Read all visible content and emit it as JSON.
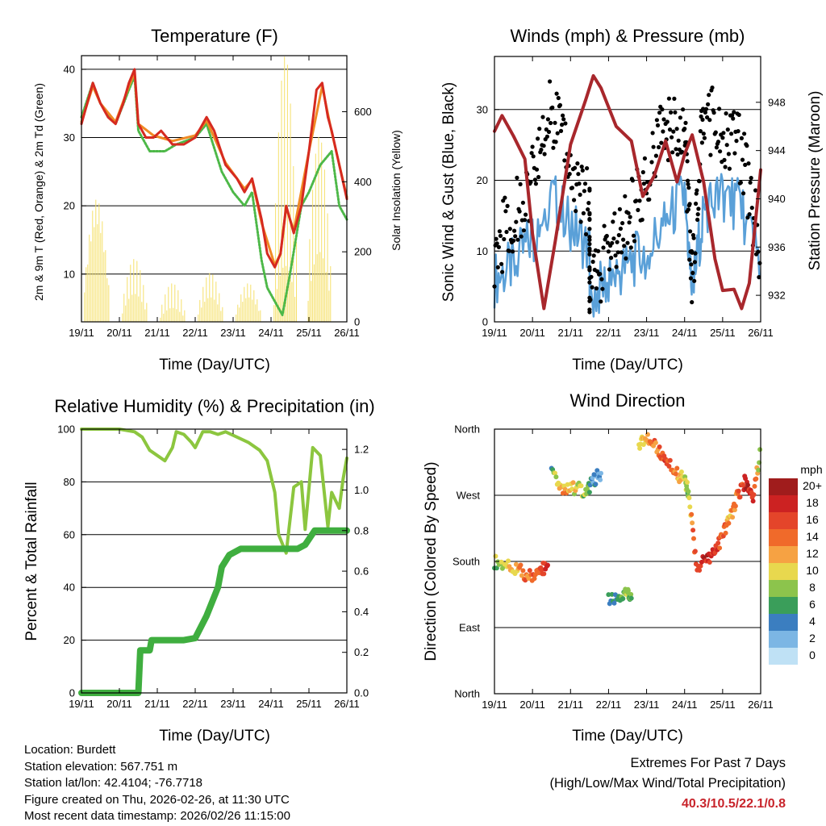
{
  "colors": {
    "red": "#d62a20",
    "orange": "#f08a24",
    "green": "#4db848",
    "yellow": "#f5e06a",
    "black": "#000000",
    "blue": "#5aa0d8",
    "maroon": "#a8272c",
    "rh": "#8cc63f",
    "precip": "#3fae3f"
  },
  "xaxis": {
    "ticks": [
      "19/11",
      "20/11",
      "21/11",
      "22/11",
      "23/11",
      "24/11",
      "25/11",
      "26/11"
    ],
    "label": "Time (Day/UTC)"
  },
  "temperature": {
    "title": "Temperature (F)",
    "ylabel_left": "2m & 9m T (Red, Orange) & 2m Td (Green)",
    "ylabel_right": "Solar Insolation (Yellow)",
    "left_ticks": [
      "10",
      "20",
      "30",
      "40"
    ],
    "right_ticks": [
      "0",
      "200",
      "400",
      "600"
    ]
  },
  "winds": {
    "title": "Winds (mph) & Pressure (mb)",
    "ylabel_left": "Sonic Wind & Gust (Blue, Black)",
    "ylabel_right": "Station Pressure (Maroon)",
    "left_ticks": [
      "0",
      "10",
      "20",
      "30"
    ],
    "right_ticks": [
      "932",
      "936",
      "940",
      "944",
      "948"
    ]
  },
  "humidity": {
    "title": "Relative Humidity (%) & Precipitation (in)",
    "ylabel_left": "Percent & Total Rainfall",
    "left_ticks": [
      "0",
      "20",
      "40",
      "60",
      "80",
      "100"
    ],
    "right_ticks": [
      "0.0",
      "0.2",
      "0.4",
      "0.6",
      "0.8",
      "1.0",
      "1.2"
    ]
  },
  "direction": {
    "title": "Wind Direction",
    "ylabel": "Direction (Colored By Speed)",
    "dir_ticks": [
      "North",
      "East",
      "South",
      "West",
      "North"
    ],
    "legend_title": "mph",
    "legend_labels": [
      "20+",
      "18",
      "16",
      "14",
      "12",
      "10",
      "8",
      "6",
      "4",
      "2",
      "0"
    ],
    "legend_colors": [
      "#a01c1c",
      "#cc2222",
      "#e4452a",
      "#f06a2a",
      "#f6a243",
      "#e8d84e",
      "#8cc44c",
      "#3a9e5a",
      "#3b7ec0",
      "#7cb6e4",
      "#bfe1f5"
    ]
  },
  "footer": {
    "location": "Location: Burdett",
    "elevation": "Station elevation: 567.751 m",
    "latlon": "Station lat/lon: 42.4104; -76.7718",
    "created": "Figure created on Thu, 2026-02-26, at 11:30 UTC",
    "recent": "Most recent data timestamp: 2026/02/26 11:15:00",
    "extremes_title": "Extremes For Past 7 Days",
    "extremes_subtitle": "(High/Low/Max Wind/Total Precipitation)",
    "extremes_values": "40.3/10.5/22.1/0.8"
  },
  "chart_data": [
    {
      "type": "line",
      "name": "temperature",
      "title": "Temperature (F)",
      "xlabel": "Time (Day/UTC)",
      "ylabel": "2m & 9m T (Red, Orange) & 2m Td (Green)",
      "y2label": "Solar Insolation (Yellow)",
      "xlim": [
        0,
        7
      ],
      "ylim": [
        3,
        42
      ],
      "y2lim": [
        0,
        760
      ],
      "x_ticks": [
        "19/11",
        "20/11",
        "21/11",
        "22/11",
        "23/11",
        "24/11",
        "25/11",
        "26/11"
      ],
      "series": [
        {
          "name": "2m T",
          "color": "#d62a20",
          "x": [
            0,
            0.1,
            0.3,
            0.5,
            0.7,
            0.9,
            1.1,
            1.25,
            1.4,
            1.5,
            1.7,
            1.9,
            2.1,
            2.4,
            2.7,
            3.0,
            3.3,
            3.5,
            3.8,
            4.1,
            4.3,
            4.5,
            4.75,
            4.9,
            5.1,
            5.25,
            5.4,
            5.6,
            5.8,
            6.0,
            6.2,
            6.35,
            6.5,
            6.6,
            6.8,
            7.0
          ],
          "y": [
            32,
            34,
            38,
            35,
            33,
            32,
            35,
            38,
            40,
            32,
            30,
            30,
            31,
            29,
            29,
            30,
            33,
            31,
            26,
            24,
            22,
            24,
            18,
            13,
            11,
            13,
            20,
            16,
            20,
            28,
            37,
            38,
            33,
            31,
            26,
            21
          ]
        },
        {
          "name": "9m T",
          "color": "#f08a24",
          "x": [
            0,
            0.3,
            0.5,
            0.9,
            1.25,
            1.4,
            1.5,
            1.9,
            2.4,
            3.0,
            3.3,
            3.8,
            4.3,
            4.5,
            4.75,
            5.1,
            5.25,
            5.4,
            5.6,
            6.0,
            6.35,
            6.6,
            7.0
          ],
          "y": [
            32.3,
            37.5,
            35,
            32.3,
            37.5,
            39.5,
            32,
            30.3,
            29.5,
            30.3,
            32.5,
            26.3,
            22.5,
            23.8,
            17.5,
            11.3,
            13,
            19.8,
            16.3,
            28,
            37.5,
            30.8,
            21.3
          ]
        },
        {
          "name": "2m Td",
          "color": "#4db848",
          "x": [
            0,
            0.3,
            0.5,
            0.9,
            1.25,
            1.4,
            1.5,
            1.8,
            2.2,
            2.5,
            3.0,
            3.3,
            3.7,
            4.0,
            4.3,
            4.5,
            4.75,
            4.9,
            5.2,
            5.3,
            5.5,
            5.8,
            6.0,
            6.3,
            6.6,
            6.8,
            7.0
          ],
          "y": [
            33,
            38,
            35,
            32,
            37,
            39,
            31,
            28,
            28,
            29,
            30,
            32,
            25,
            22,
            20,
            22,
            12,
            8,
            5,
            4,
            10,
            20,
            22,
            26,
            28,
            20,
            18
          ]
        },
        {
          "name": "Solar Insolation",
          "color": "#f5e06a",
          "axis": "right",
          "x": [
            0.3,
            0.5,
            1.3,
            1.5,
            2.3,
            2.5,
            3.3,
            3.5,
            4.3,
            4.5,
            5.3,
            5.45,
            6.2,
            6.35
          ],
          "y": [
            280,
            350,
            80,
            180,
            40,
            110,
            70,
            140,
            70,
            110,
            160,
            760,
            200,
            530
          ]
        }
      ]
    },
    {
      "type": "line",
      "name": "winds_pressure",
      "title": "Winds (mph) & Pressure (mb)",
      "xlabel": "Time (Day/UTC)",
      "ylabel": "Sonic Wind & Gust (Blue, Black)",
      "y2label": "Station Pressure (Maroon)",
      "xlim": [
        0,
        7
      ],
      "ylim": [
        0,
        37.5
      ],
      "y2lim": [
        929.8,
        951.8
      ],
      "x_ticks": [
        "19/11",
        "20/11",
        "21/11",
        "22/11",
        "23/11",
        "24/11",
        "25/11",
        "26/11"
      ],
      "series": [
        {
          "name": "Wind",
          "color": "#5aa0d8",
          "x": [
            0,
            0.5,
            1.0,
            1.5,
            2.0,
            2.5,
            2.5,
            3.0,
            3.5,
            4.0,
            4.5,
            5.0,
            5.2,
            5.5,
            6.0,
            6.5,
            7.0
          ],
          "y": [
            6,
            8,
            12,
            18,
            14,
            10,
            3,
            6,
            8,
            10,
            14,
            18,
            4,
            16,
            18,
            16,
            8
          ]
        },
        {
          "name": "Gust",
          "color": "#000000",
          "x": [
            0,
            0.5,
            1.0,
            1.5,
            2.0,
            2.5,
            2.5,
            3.0,
            3.5,
            4.0,
            4.5,
            5.0,
            5.2,
            5.5,
            6.0,
            6.5,
            7.0
          ],
          "y": [
            10,
            15,
            20,
            30,
            22,
            16,
            4,
            10,
            14,
            20,
            28,
            26,
            5,
            30,
            26,
            24,
            10
          ]
        },
        {
          "name": "Station Pressure",
          "color": "#a8272c",
          "axis": "right",
          "x": [
            0,
            0.2,
            0.5,
            0.8,
            1.0,
            1.3,
            1.6,
            2.0,
            2.4,
            2.6,
            2.8,
            3.2,
            3.6,
            3.9,
            4.2,
            4.5,
            4.8,
            5.0,
            5.2,
            5.5,
            5.8,
            6.0,
            6.3,
            6.5,
            6.7,
            7.0
          ],
          "y": [
            945.6,
            946.9,
            945.2,
            943.3,
            937.1,
            930.9,
            936.5,
            944.5,
            948.2,
            950.2,
            949.2,
            946.0,
            944.8,
            940.2,
            941.9,
            944.8,
            941.4,
            943.7,
            945.3,
            941.4,
            935.0,
            932.4,
            932.5,
            930.9,
            933.0,
            942.4
          ]
        }
      ]
    },
    {
      "type": "line",
      "name": "humidity_precip",
      "title": "Relative Humidity (%) & Precipitation (in)",
      "xlabel": "Time (Day/UTC)",
      "ylabel": "Percent & Total Rainfall",
      "xlim": [
        0,
        7
      ],
      "ylim": [
        0,
        100
      ],
      "y2lim": [
        0,
        1.3
      ],
      "x_ticks": [
        "19/11",
        "20/11",
        "21/11",
        "22/11",
        "23/11",
        "24/11",
        "25/11",
        "26/11"
      ],
      "series": [
        {
          "name": "Relative Humidity",
          "color": "#8cc63f",
          "x": [
            0,
            0.5,
            1.0,
            1.4,
            1.6,
            1.8,
            2.0,
            2.2,
            2.4,
            2.5,
            2.7,
            2.9,
            3.0,
            3.2,
            3.4,
            3.6,
            3.8,
            4.1,
            4.4,
            4.7,
            4.9,
            5.1,
            5.2,
            5.4,
            5.6,
            5.8,
            5.9,
            6.1,
            6.3,
            6.5,
            6.6,
            6.8,
            6.9,
            7.0
          ],
          "y": [
            100,
            100,
            100,
            99,
            97,
            92,
            90,
            88,
            93,
            99,
            98,
            95,
            93,
            99,
            99,
            98,
            99,
            97,
            95,
            92,
            88,
            76,
            60,
            53,
            78,
            80,
            62,
            93,
            90,
            63,
            76,
            70,
            81,
            89
          ]
        },
        {
          "name": "Total Precipitation",
          "color": "#3fae3f",
          "axis": "right",
          "x": [
            0,
            1.5,
            1.55,
            1.8,
            1.85,
            2.7,
            3.0,
            3.3,
            3.6,
            3.7,
            3.9,
            4.2,
            4.5,
            4.6,
            5.7,
            5.9,
            6.15,
            6.3,
            7.0
          ],
          "y": [
            0,
            0,
            0.21,
            0.21,
            0.26,
            0.26,
            0.27,
            0.38,
            0.52,
            0.62,
            0.68,
            0.71,
            0.71,
            0.71,
            0.71,
            0.73,
            0.8,
            0.8,
            0.8
          ]
        }
      ]
    },
    {
      "type": "scatter",
      "name": "wind_direction",
      "title": "Wind Direction",
      "xlabel": "Time (Day/UTC)",
      "ylabel": "Direction (Colored By Speed)",
      "xlim": [
        0,
        7
      ],
      "ylim": [
        0,
        360
      ],
      "x_ticks": [
        "19/11",
        "20/11",
        "21/11",
        "22/11",
        "23/11",
        "24/11",
        "25/11",
        "26/11"
      ],
      "y_ticks": [
        "North",
        "East",
        "South",
        "West",
        "North"
      ],
      "color_scale": {
        "label": "mph",
        "min": 0,
        "max": 20
      },
      "series": [
        {
          "name": "Direction",
          "x": [
            0,
            0.3,
            0.6,
            0.9,
            1.2,
            1.4,
            1.5,
            1.8,
            2.1,
            2.4,
            2.6,
            2.8,
            3.0,
            3.3,
            3.5,
            3.6,
            3.8,
            4.0,
            4.3,
            4.5,
            4.8,
            5.0,
            5.1,
            5.3,
            5.6,
            5.8,
            6.0,
            6.2,
            6.4,
            6.6,
            6.8,
            7.0
          ],
          "y": [
            180,
            175,
            170,
            160,
            165,
            175,
            300,
            275,
            280,
            275,
            290,
            300,
            130,
            130,
            135,
            130,
            340,
            350,
            330,
            320,
            300,
            290,
            275,
            175,
            180,
            195,
            215,
            240,
            270,
            290,
            270,
            330
          ],
          "speed": [
            8,
            10,
            12,
            14,
            16,
            18,
            6,
            12,
            10,
            8,
            4,
            2,
            4,
            6,
            8,
            6,
            10,
            12,
            14,
            16,
            12,
            10,
            8,
            18,
            18,
            16,
            14,
            12,
            14,
            18,
            16,
            8
          ]
        }
      ]
    }
  ]
}
